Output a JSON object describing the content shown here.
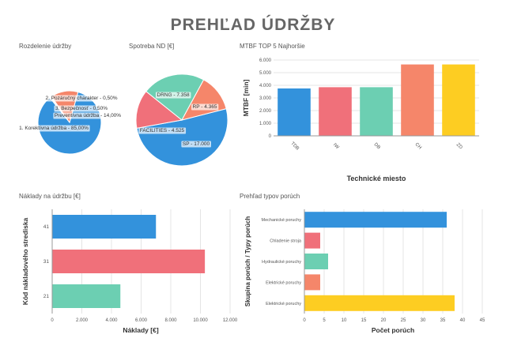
{
  "page": {
    "title": "PREHĽAD ÚDRŽBY"
  },
  "panels": {
    "p1": "Rozdelenie údržby",
    "p2": "Spotreba ND [€]",
    "p3": "MTBF TOP 5 Najhoršie",
    "p4": "Náklady na údržbu [€]",
    "p5": "Prehľad typov porúch"
  },
  "colors": {
    "blue": "#3392dc",
    "red": "#f0707a",
    "teal": "#6ccfb2",
    "orange": "#f5866a",
    "yellow": "#fdcd22",
    "grid": "#e4e4e4",
    "axis": "#999999"
  },
  "chart_data": [
    {
      "id": "pie1",
      "type": "pie",
      "slices": [
        {
          "label": "1. Korektívna údržba - 85,00%",
          "value": 85.0,
          "color": "#3392dc"
        },
        {
          "label": "2. Pozáručný charakter - 0,50%",
          "value": 0.5,
          "color": "#f0707a"
        },
        {
          "label": "3. Bezpečnosť - 0,50%",
          "value": 0.5,
          "color": "#6ccfb2"
        },
        {
          "label": "Preventívna údržba - 14,00%",
          "value": 14.0,
          "color": "#f5866a"
        }
      ]
    },
    {
      "id": "pie2",
      "type": "pie",
      "slices": [
        {
          "label": "SP - 17.000",
          "value": 17000,
          "color": "#3392dc"
        },
        {
          "label": "FACILITIES - 4.525",
          "value": 4525,
          "color": "#f0707a"
        },
        {
          "label": "DRNG - 7.358",
          "value": 7358,
          "color": "#6ccfb2"
        },
        {
          "label": "RP - 4.365",
          "value": 4365,
          "color": "#f5866a"
        }
      ]
    },
    {
      "id": "mtbf",
      "type": "bar",
      "categories": [
        "TDB",
        "IW",
        "DB",
        "CH",
        "ZD"
      ],
      "values": [
        3750,
        3850,
        3850,
        5650,
        5650
      ],
      "colors": [
        "#3392dc",
        "#f0707a",
        "#6ccfb2",
        "#f5866a",
        "#fdcd22"
      ],
      "ylabel": "MTBF [min]",
      "xlabel": "Technické miesto",
      "ylim": [
        0,
        6000
      ],
      "yticks": [
        "0",
        "1.000",
        "2.000",
        "3.000",
        "4.000",
        "5.000",
        "6.000"
      ]
    },
    {
      "id": "costs",
      "type": "bar",
      "orientation": "horizontal",
      "categories": [
        "41",
        "31",
        "21"
      ],
      "values": [
        7000,
        10300,
        4600
      ],
      "colors": [
        "#3392dc",
        "#f0707a",
        "#6ccfb2"
      ],
      "xlabel": "Náklady [€]",
      "ylabel": "Kód nákladového strediska",
      "xlim": [
        0,
        12000
      ],
      "xticks": [
        "0",
        "2.000",
        "4.000",
        "6.000",
        "8.000",
        "10.000",
        "12.000"
      ]
    },
    {
      "id": "faults",
      "type": "bar",
      "orientation": "horizontal",
      "categories": [
        "Mechanické poruchy",
        "Chladenie stroja",
        "Hydraulické poruchy",
        "Elektrické poruchy",
        "Elektrické poruchy"
      ],
      "values": [
        36,
        4,
        6,
        4,
        38
      ],
      "colors": [
        "#3392dc",
        "#f0707a",
        "#6ccfb2",
        "#f5866a",
        "#fdcd22"
      ],
      "xlabel": "Počet porúch",
      "ylabel": "Skupina porúch / Typy porúch",
      "xlim": [
        0,
        45
      ],
      "xticks": [
        "0",
        "5",
        "10",
        "15",
        "20",
        "25",
        "30",
        "35",
        "40",
        "45"
      ]
    }
  ]
}
